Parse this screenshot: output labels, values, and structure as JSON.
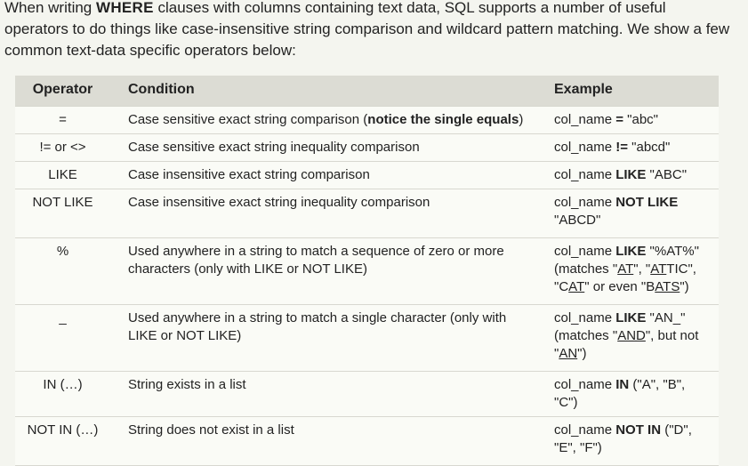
{
  "intro": {
    "text_before": "When writing ",
    "keyword": "WHERE",
    "text_after": " clauses with columns containing text data, SQL supports a number of useful operators to do things like case-insensitive string comparison and wildcard pattern matching. We show a few common text-data specific operators below:"
  },
  "table": {
    "headers": {
      "operator": "Operator",
      "condition": "Condition",
      "example": "Example"
    },
    "rows": [
      {
        "operator": "=",
        "condition": "Case sensitive exact string comparison (",
        "condition_bold": "notice the single equals",
        "condition_after": ")",
        "ex_pre": "col_name ",
        "ex_op": "=",
        "ex_post": " \"abc\""
      },
      {
        "operator": "!= or <>",
        "condition": "Case sensitive exact string inequality comparison",
        "ex_pre": "col_name ",
        "ex_op": "!=",
        "ex_post": " \"abcd\""
      },
      {
        "operator": "LIKE",
        "condition": "Case insensitive exact string comparison",
        "ex_pre": "col_name ",
        "ex_op": "LIKE",
        "ex_post": " \"ABC\""
      },
      {
        "operator": "NOT LIKE",
        "condition": "Case insensitive exact string inequality comparison",
        "ex_pre": "col_name ",
        "ex_op": "NOT LIKE",
        "ex_post": " \"ABCD\""
      },
      {
        "operator": "%",
        "condition": "Used anywhere in a string to match a sequence of zero or more characters (only with LIKE or NOT LIKE)",
        "ex_pre": "col_name ",
        "ex_op": "LIKE",
        "ex_post": " \"%AT%\"",
        "matches": [
          "(matches \"",
          "AT",
          "\", \"",
          "AT",
          "TIC\", \"C",
          "AT",
          "\" or even \"B",
          "ATS",
          "\")"
        ]
      },
      {
        "operator": "_",
        "condition": "Used anywhere in a string to match a single character (only with LIKE or NOT LIKE)",
        "ex_pre": "col_name ",
        "ex_op": "LIKE",
        "ex_post": " \"AN_\"",
        "matches": [
          "(matches \"",
          "AND",
          "\", but not \"",
          "AN",
          "\")"
        ]
      },
      {
        "operator": "IN (…)",
        "condition": "String exists in a list",
        "ex_pre": "col_name ",
        "ex_op": "IN",
        "ex_post": " (\"A\", \"B\", \"C\")"
      },
      {
        "operator": "NOT IN (…)",
        "condition": "String does not exist in a list",
        "ex_pre": "col_name ",
        "ex_op": "NOT IN",
        "ex_post": " (\"D\", \"E\", \"F\")"
      }
    ]
  }
}
